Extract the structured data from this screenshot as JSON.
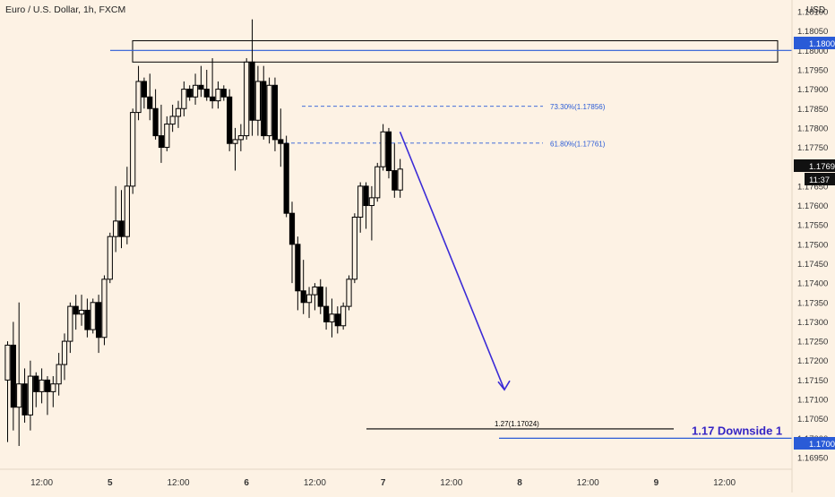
{
  "header": {
    "title": "Euro / U.S. Dollar, 1h, FXCM",
    "currency": "USD"
  },
  "price_labels": {
    "last_price": "1.17694",
    "countdown": "11:37",
    "level_tag": "1.18000",
    "downside_tag": "1.17000"
  },
  "annotations": {
    "fib_733": "73.30%(1.17856)",
    "fib_618": "61.80%(1.17761)",
    "ext_127": "1.27(1.17024)",
    "downside_note": "1.17 Downside 1"
  },
  "colors": {
    "background": "#fdf2e4",
    "candle": "#000000",
    "level_line": "#2a5bd7",
    "arrow": "#3b2bd6",
    "downside_text": "#3524c4",
    "tag_bg": "#2a5bd7",
    "last_price_bg": "#111111"
  },
  "chart_data": {
    "type": "candlestick",
    "instrument": "Euro / U.S. Dollar",
    "timeframe": "1h",
    "source": "FXCM",
    "ylim": [
      1.1692,
      1.1813
    ],
    "y_ticks": [
      "1.16950",
      "1.17000",
      "1.17050",
      "1.17100",
      "1.17150",
      "1.17200",
      "1.17250",
      "1.17300",
      "1.17350",
      "1.17400",
      "1.17450",
      "1.17500",
      "1.17550",
      "1.17600",
      "1.17650",
      "1.17700",
      "1.17750",
      "1.17800",
      "1.17850",
      "1.17900",
      "1.17950",
      "1.18000",
      "1.18050",
      "1.18100"
    ],
    "x_ticks": [
      {
        "bar": 6,
        "label": "12:00"
      },
      {
        "bar": 18,
        "label": "5"
      },
      {
        "bar": 30,
        "label": "12:00"
      },
      {
        "bar": 42,
        "label": "6"
      },
      {
        "bar": 54,
        "label": "12:00"
      },
      {
        "bar": 66,
        "label": "7"
      },
      {
        "bar": 78,
        "label": "12:00"
      },
      {
        "bar": 90,
        "label": "8"
      },
      {
        "bar": 102,
        "label": "12:00"
      },
      {
        "bar": 114,
        "label": "9"
      },
      {
        "bar": 126,
        "label": "12:00"
      }
    ],
    "candles": [
      {
        "o": 1.1715,
        "h": 1.1725,
        "l": 1.1699,
        "c": 1.1724
      },
      {
        "o": 1.1724,
        "h": 1.173,
        "l": 1.1702,
        "c": 1.1708
      },
      {
        "o": 1.1708,
        "h": 1.1735,
        "l": 1.1698,
        "c": 1.1714
      },
      {
        "o": 1.1714,
        "h": 1.1718,
        "l": 1.1704,
        "c": 1.1706
      },
      {
        "o": 1.1706,
        "h": 1.172,
        "l": 1.1702,
        "c": 1.1716
      },
      {
        "o": 1.1716,
        "h": 1.1717,
        "l": 1.1708,
        "c": 1.1712
      },
      {
        "o": 1.1712,
        "h": 1.1718,
        "l": 1.1709,
        "c": 1.1715
      },
      {
        "o": 1.1715,
        "h": 1.1716,
        "l": 1.1706,
        "c": 1.1712
      },
      {
        "o": 1.1712,
        "h": 1.1716,
        "l": 1.1708,
        "c": 1.1714
      },
      {
        "o": 1.1714,
        "h": 1.1722,
        "l": 1.1711,
        "c": 1.1719
      },
      {
        "o": 1.1719,
        "h": 1.1727,
        "l": 1.1715,
        "c": 1.1725
      },
      {
        "o": 1.1725,
        "h": 1.1735,
        "l": 1.1722,
        "c": 1.1734
      },
      {
        "o": 1.1734,
        "h": 1.1737,
        "l": 1.1728,
        "c": 1.1732
      },
      {
        "o": 1.1732,
        "h": 1.1737,
        "l": 1.1729,
        "c": 1.1733
      },
      {
        "o": 1.1733,
        "h": 1.1736,
        "l": 1.1726,
        "c": 1.1728
      },
      {
        "o": 1.1728,
        "h": 1.1736,
        "l": 1.1727,
        "c": 1.1735
      },
      {
        "o": 1.1735,
        "h": 1.1737,
        "l": 1.1722,
        "c": 1.1726
      },
      {
        "o": 1.1726,
        "h": 1.1742,
        "l": 1.1724,
        "c": 1.1741
      },
      {
        "o": 1.1741,
        "h": 1.1753,
        "l": 1.174,
        "c": 1.1752
      },
      {
        "o": 1.1752,
        "h": 1.1765,
        "l": 1.1748,
        "c": 1.1756
      },
      {
        "o": 1.1756,
        "h": 1.1764,
        "l": 1.1749,
        "c": 1.1752
      },
      {
        "o": 1.1752,
        "h": 1.177,
        "l": 1.175,
        "c": 1.1765
      },
      {
        "o": 1.1765,
        "h": 1.1785,
        "l": 1.1763,
        "c": 1.1784
      },
      {
        "o": 1.1784,
        "h": 1.1796,
        "l": 1.1782,
        "c": 1.1792
      },
      {
        "o": 1.1792,
        "h": 1.1793,
        "l": 1.1785,
        "c": 1.1788
      },
      {
        "o": 1.1788,
        "h": 1.1794,
        "l": 1.1782,
        "c": 1.1785
      },
      {
        "o": 1.1785,
        "h": 1.179,
        "l": 1.1777,
        "c": 1.1778
      },
      {
        "o": 1.1778,
        "h": 1.1786,
        "l": 1.1771,
        "c": 1.1775
      },
      {
        "o": 1.1775,
        "h": 1.1783,
        "l": 1.1774,
        "c": 1.1781
      },
      {
        "o": 1.1781,
        "h": 1.1786,
        "l": 1.1779,
        "c": 1.1783
      },
      {
        "o": 1.1783,
        "h": 1.1787,
        "l": 1.178,
        "c": 1.1785
      },
      {
        "o": 1.1785,
        "h": 1.1792,
        "l": 1.1783,
        "c": 1.179
      },
      {
        "o": 1.179,
        "h": 1.1791,
        "l": 1.1787,
        "c": 1.1788
      },
      {
        "o": 1.1788,
        "h": 1.1794,
        "l": 1.1786,
        "c": 1.1791
      },
      {
        "o": 1.1791,
        "h": 1.1796,
        "l": 1.1788,
        "c": 1.179
      },
      {
        "o": 1.179,
        "h": 1.1795,
        "l": 1.1787,
        "c": 1.1788
      },
      {
        "o": 1.1788,
        "h": 1.1798,
        "l": 1.1785,
        "c": 1.1787
      },
      {
        "o": 1.1787,
        "h": 1.1792,
        "l": 1.1785,
        "c": 1.179
      },
      {
        "o": 1.179,
        "h": 1.1791,
        "l": 1.1787,
        "c": 1.1788
      },
      {
        "o": 1.1788,
        "h": 1.179,
        "l": 1.1774,
        "c": 1.1776
      },
      {
        "o": 1.1776,
        "h": 1.178,
        "l": 1.1769,
        "c": 1.1777
      },
      {
        "o": 1.1777,
        "h": 1.1781,
        "l": 1.1774,
        "c": 1.1778
      },
      {
        "o": 1.1778,
        "h": 1.1798,
        "l": 1.1777,
        "c": 1.1797
      },
      {
        "o": 1.1797,
        "h": 1.1808,
        "l": 1.1778,
        "c": 1.1782
      },
      {
        "o": 1.1782,
        "h": 1.1796,
        "l": 1.1778,
        "c": 1.1792
      },
      {
        "o": 1.1792,
        "h": 1.1796,
        "l": 1.1777,
        "c": 1.1778
      },
      {
        "o": 1.1778,
        "h": 1.1793,
        "l": 1.1776,
        "c": 1.1791
      },
      {
        "o": 1.1791,
        "h": 1.1793,
        "l": 1.1774,
        "c": 1.1777
      },
      {
        "o": 1.1777,
        "h": 1.1785,
        "l": 1.177,
        "c": 1.1776
      },
      {
        "o": 1.1776,
        "h": 1.1778,
        "l": 1.1757,
        "c": 1.1758
      },
      {
        "o": 1.1758,
        "h": 1.1761,
        "l": 1.174,
        "c": 1.175
      },
      {
        "o": 1.175,
        "h": 1.1752,
        "l": 1.1733,
        "c": 1.1738
      },
      {
        "o": 1.1738,
        "h": 1.1746,
        "l": 1.1732,
        "c": 1.1735
      },
      {
        "o": 1.1735,
        "h": 1.1739,
        "l": 1.1731,
        "c": 1.1737
      },
      {
        "o": 1.1737,
        "h": 1.174,
        "l": 1.1733,
        "c": 1.1739
      },
      {
        "o": 1.1739,
        "h": 1.1741,
        "l": 1.1732,
        "c": 1.1734
      },
      {
        "o": 1.1734,
        "h": 1.1739,
        "l": 1.1728,
        "c": 1.173
      },
      {
        "o": 1.173,
        "h": 1.1736,
        "l": 1.1726,
        "c": 1.1732
      },
      {
        "o": 1.1732,
        "h": 1.1734,
        "l": 1.1727,
        "c": 1.1729
      },
      {
        "o": 1.1729,
        "h": 1.1735,
        "l": 1.1728,
        "c": 1.1734
      },
      {
        "o": 1.1734,
        "h": 1.1742,
        "l": 1.1733,
        "c": 1.1741
      },
      {
        "o": 1.1741,
        "h": 1.1758,
        "l": 1.174,
        "c": 1.1757
      },
      {
        "o": 1.1757,
        "h": 1.1766,
        "l": 1.1753,
        "c": 1.1765
      },
      {
        "o": 1.1765,
        "h": 1.1766,
        "l": 1.1754,
        "c": 1.176
      },
      {
        "o": 1.176,
        "h": 1.1765,
        "l": 1.1751,
        "c": 1.1762
      },
      {
        "o": 1.1762,
        "h": 1.1771,
        "l": 1.1761,
        "c": 1.177
      },
      {
        "o": 1.177,
        "h": 1.1781,
        "l": 1.1769,
        "c": 1.1779
      },
      {
        "o": 1.1779,
        "h": 1.178,
        "l": 1.1767,
        "c": 1.1769
      },
      {
        "o": 1.1769,
        "h": 1.1776,
        "l": 1.1762,
        "c": 1.1764
      },
      {
        "o": 1.1764,
        "h": 1.1772,
        "l": 1.1762,
        "c": 1.17694
      }
    ],
    "levels": [
      {
        "label": "1.18000",
        "value": 1.18,
        "style": "solid"
      },
      {
        "label": "1.17000",
        "value": 1.17,
        "style": "solid"
      },
      {
        "label": "73.30%(1.17856)",
        "value": 1.17856,
        "style": "dashed"
      },
      {
        "label": "61.80%(1.17761)",
        "value": 1.17761,
        "style": "dashed"
      },
      {
        "label": "1.27(1.17024)",
        "value": 1.17024,
        "style": "solid"
      }
    ],
    "zone": {
      "from": 1.1797,
      "to": 1.18025
    },
    "projection": {
      "from_bar": 68.5,
      "from": 1.1779,
      "to_bar": 79,
      "to": 1.17125
    }
  }
}
